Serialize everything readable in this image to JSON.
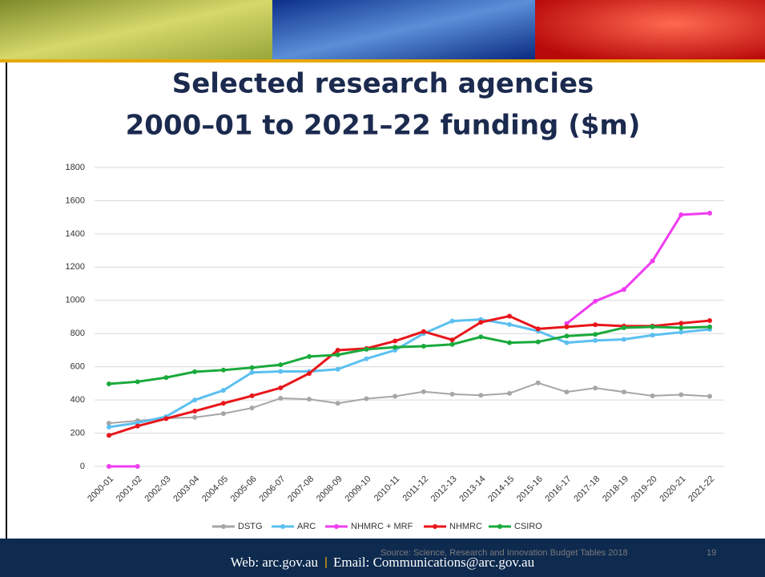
{
  "chart_data": {
    "type": "line",
    "title": [
      "Selected research agencies",
      "2000–01 to 2021–22 funding ($m)"
    ],
    "categories": [
      "2000-01",
      "2001-02",
      "2002-03",
      "2003-04",
      "2004-05",
      "2005-06",
      "2006-07",
      "2007-08",
      "2008-09",
      "2009-10",
      "2010-11",
      "2011-12",
      "2012-13",
      "2013-14",
      "2014-15",
      "2015-16",
      "2016-17",
      "2017-18",
      "2018-19",
      "2019-20",
      "2020-21",
      "2021-22"
    ],
    "series": [
      {
        "name": "DSTG",
        "color": "#a6a6a6",
        "values": [
          260,
          275,
          290,
          295,
          318,
          352,
          410,
          405,
          380,
          408,
          422,
          450,
          435,
          428,
          440,
          503,
          448,
          472,
          448,
          425,
          432,
          422
        ]
      },
      {
        "name": "ARC",
        "color": "#5bc0f0",
        "values": [
          237,
          262,
          300,
          400,
          458,
          566,
          572,
          572,
          585,
          648,
          700,
          800,
          875,
          885,
          855,
          815,
          745,
          758,
          765,
          790,
          808,
          825
        ]
      },
      {
        "name": "NHMRC + MRF",
        "color": "#f03cf0",
        "values": [
          0,
          0,
          null,
          null,
          null,
          null,
          null,
          null,
          null,
          null,
          null,
          null,
          null,
          null,
          null,
          null,
          860,
          995,
          1065,
          1237,
          1515,
          1525
        ]
      },
      {
        "name": "NHMRC",
        "color": "#e8161b",
        "values": [
          187,
          243,
          288,
          333,
          380,
          425,
          473,
          560,
          700,
          710,
          755,
          812,
          762,
          868,
          905,
          828,
          840,
          853,
          845,
          845,
          862,
          878
        ]
      },
      {
        "name": "CSIRO",
        "color": "#1aaa3c",
        "values": [
          497,
          510,
          535,
          570,
          580,
          595,
          612,
          662,
          672,
          705,
          718,
          724,
          735,
          780,
          745,
          750,
          785,
          795,
          835,
          840,
          835,
          840
        ]
      }
    ],
    "ylim": [
      0,
      1800
    ],
    "yticks": [
      0,
      200,
      400,
      600,
      800,
      1000,
      1200,
      1400,
      1600,
      1800
    ],
    "grid": true,
    "legend": "bottom"
  },
  "footer": {
    "web": "Web: arc.gov.au",
    "separator": "|",
    "email": "Email: Communications@arc.gov.au",
    "source": "Source: Science, Research and Innovation Budget Tables 2018",
    "page": "19"
  }
}
